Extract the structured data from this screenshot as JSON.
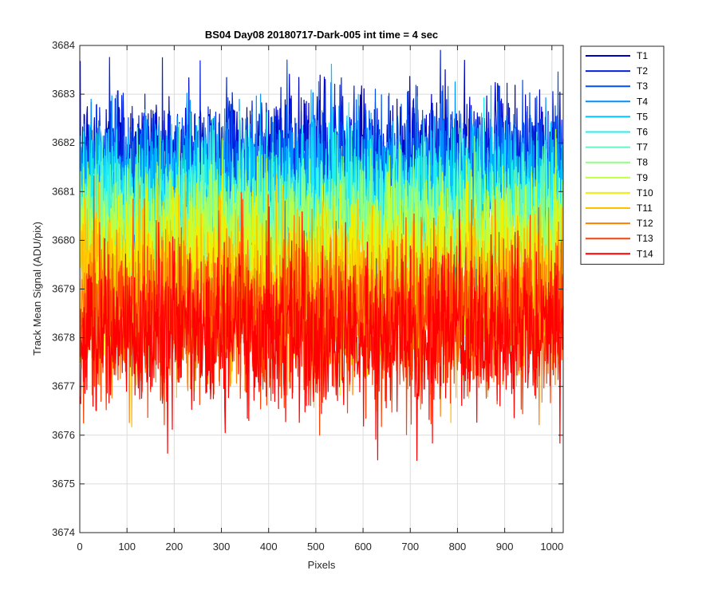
{
  "chart_data": {
    "type": "line",
    "title": "BS04 Day08 20180717-Dark-005 int time = 4 sec",
    "xlabel": "Pixels",
    "ylabel": "Track Mean Signal (ADU/pix)",
    "xlim": [
      0,
      1024
    ],
    "ylim": [
      3674,
      3684
    ],
    "xticks": [
      0,
      100,
      200,
      300,
      400,
      500,
      600,
      700,
      800,
      900,
      1000
    ],
    "yticks": [
      3674,
      3675,
      3676,
      3677,
      3678,
      3679,
      3680,
      3681,
      3682,
      3683,
      3684
    ],
    "grid": true,
    "legend_position": "outside-top-right",
    "n_points": 1024,
    "series": [
      {
        "name": "T1",
        "color": "#0000bf",
        "mean": 3681.6,
        "noise_sd": 0.75
      },
      {
        "name": "T2",
        "color": "#0020df",
        "mean": 3681.5,
        "noise_sd": 0.75
      },
      {
        "name": "T3",
        "color": "#0050f0",
        "mean": 3681.3,
        "noise_sd": 0.75
      },
      {
        "name": "T4",
        "color": "#0090ff",
        "mean": 3681.1,
        "noise_sd": 0.75
      },
      {
        "name": "T5",
        "color": "#00c0ff",
        "mean": 3680.9,
        "noise_sd": 0.75
      },
      {
        "name": "T6",
        "color": "#20f0f0",
        "mean": 3680.7,
        "noise_sd": 0.75
      },
      {
        "name": "T7",
        "color": "#60f8c0",
        "mean": 3680.4,
        "noise_sd": 0.75
      },
      {
        "name": "T8",
        "color": "#90ff80",
        "mean": 3680.1,
        "noise_sd": 0.75
      },
      {
        "name": "T9",
        "color": "#c0ff40",
        "mean": 3679.8,
        "noise_sd": 0.75
      },
      {
        "name": "T10",
        "color": "#f0f000",
        "mean": 3679.4,
        "noise_sd": 0.8
      },
      {
        "name": "T11",
        "color": "#ffc000",
        "mean": 3679.0,
        "noise_sd": 0.8
      },
      {
        "name": "T12",
        "color": "#ff8000",
        "mean": 3678.6,
        "noise_sd": 0.8
      },
      {
        "name": "T13",
        "color": "#ff4000",
        "mean": 3678.3,
        "noise_sd": 0.8
      },
      {
        "name": "T14",
        "color": "#ff0000",
        "mean": 3678.1,
        "noise_sd": 0.8
      }
    ]
  }
}
